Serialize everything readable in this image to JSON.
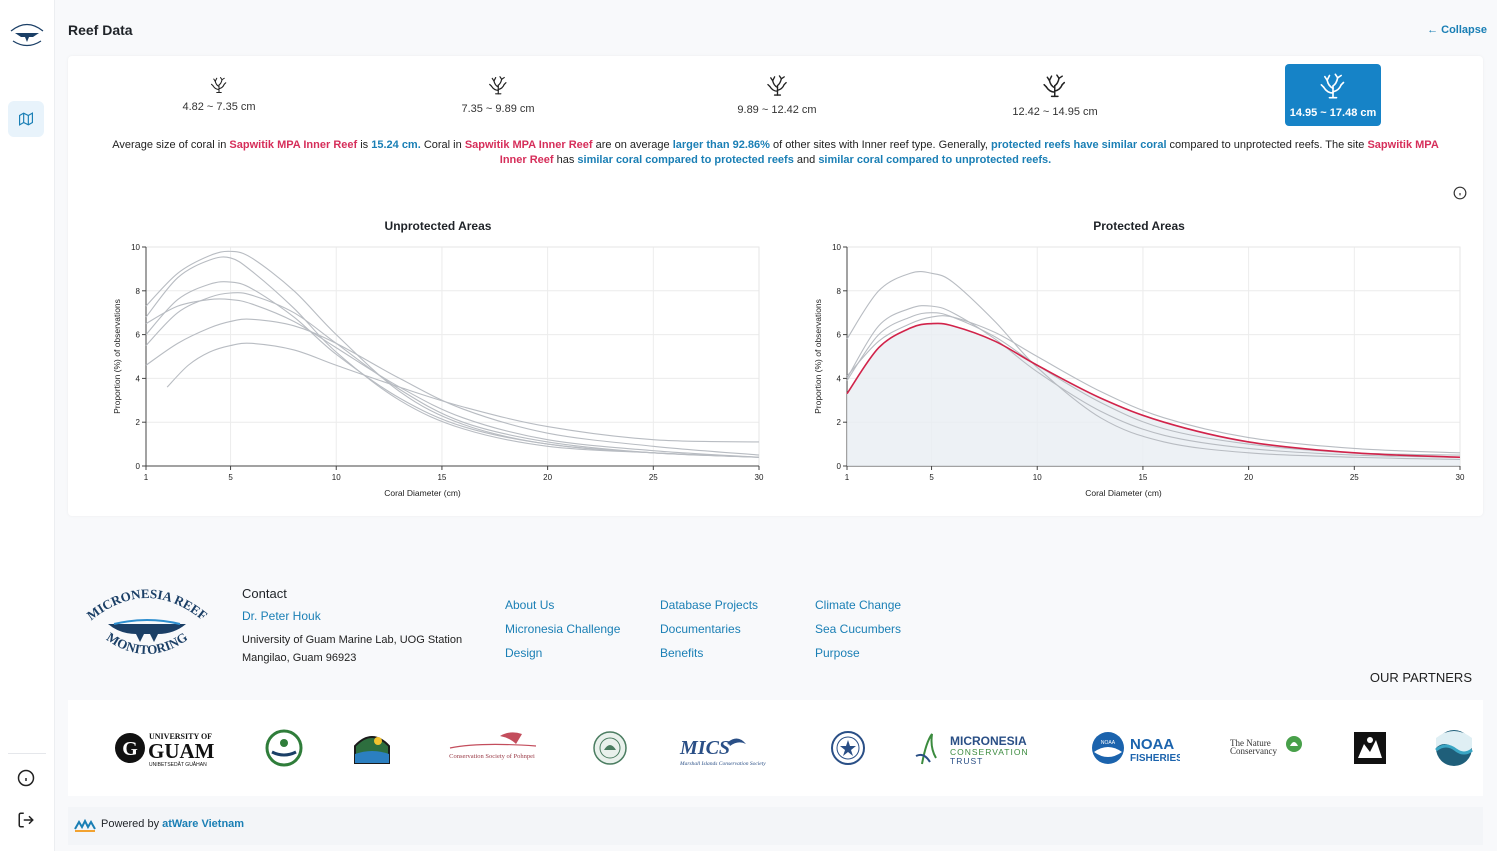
{
  "header": {
    "title": "Reef Data",
    "collapse_label": "Collapse"
  },
  "size_filters": [
    {
      "label": "4.82 ~ 7.35 cm",
      "active": false
    },
    {
      "label": "7.35 ~ 9.89 cm",
      "active": false
    },
    {
      "label": "9.89 ~ 12.42 cm",
      "active": false
    },
    {
      "label": "12.42 ~ 14.95 cm",
      "active": false
    },
    {
      "label": "14.95 ~ 17.48 cm",
      "active": true
    }
  ],
  "summary": {
    "p1": "Average size of coral in ",
    "site1": "Sapwitik MPA Inner Reef",
    "p2": " is ",
    "avg": "15.24 cm.",
    "p3": " Coral in ",
    "site2": "Sapwitik MPA Inner Reef",
    "p4": " are on average ",
    "pct": "larger than 92.86%",
    "p5": " of other sites with Inner reef type. Generally, ",
    "general": "protected reefs have similar coral",
    "p6": " compared to unprotected reefs. The site ",
    "site3": "Sapwitik MPA Inner Reef",
    "p7": " has ",
    "cmp1": "similar coral compared to protected reefs",
    "p8": " and ",
    "cmp2": "similar coral compared to unprotected reefs."
  },
  "chart_data": [
    {
      "type": "line",
      "title": "Unprotected Areas",
      "xlabel": "Coral Diameter (cm)",
      "ylabel": "Proportion (%) of observations",
      "xlim": [
        1,
        30
      ],
      "ylim": [
        0,
        10
      ],
      "xticks": [
        1,
        5,
        10,
        15,
        20,
        25,
        30
      ],
      "yticks": [
        0,
        2,
        4,
        6,
        8,
        10
      ],
      "grid": true,
      "series": [
        {
          "color": "#b8bcc2",
          "x": [
            1,
            2.5,
            4,
            5,
            6,
            8,
            10,
            13,
            16,
            20,
            25,
            30
          ],
          "y": [
            7.3,
            8.8,
            9.6,
            9.8,
            9.5,
            8.0,
            6.0,
            3.4,
            1.9,
            1.0,
            0.6,
            0.4
          ]
        },
        {
          "color": "#b8bcc2",
          "x": [
            1,
            2.5,
            4,
            5,
            6,
            8,
            10,
            13,
            16,
            20,
            25,
            30
          ],
          "y": [
            6.8,
            8.6,
            9.4,
            9.5,
            8.9,
            7.2,
            5.2,
            3.0,
            1.7,
            0.9,
            0.6,
            0.4
          ]
        },
        {
          "color": "#b8bcc2",
          "x": [
            1,
            2.5,
            4,
            5,
            6,
            8,
            10,
            13,
            16,
            20,
            25,
            30
          ],
          "y": [
            6.0,
            7.6,
            8.3,
            8.4,
            8.1,
            6.8,
            5.1,
            3.1,
            1.8,
            1.0,
            0.6,
            0.4
          ]
        },
        {
          "color": "#b8bcc2",
          "x": [
            1,
            2.5,
            4,
            5,
            6,
            8,
            10,
            13,
            16,
            20,
            25,
            30
          ],
          "y": [
            6.5,
            7.3,
            7.6,
            7.6,
            7.4,
            6.6,
            5.4,
            3.6,
            2.2,
            1.2,
            0.7,
            0.4
          ]
        },
        {
          "color": "#b8bcc2",
          "x": [
            1,
            2.5,
            4,
            5,
            6,
            8,
            10,
            13,
            16,
            20,
            25,
            30
          ],
          "y": [
            5.5,
            7.0,
            7.7,
            7.9,
            7.8,
            7.0,
            5.6,
            3.5,
            2.0,
            1.1,
            0.6,
            0.4
          ]
        },
        {
          "color": "#b8bcc2",
          "x": [
            1,
            2.5,
            4,
            5,
            6,
            8,
            10,
            13,
            16,
            20,
            25,
            30
          ],
          "y": [
            4.6,
            5.6,
            6.3,
            6.6,
            6.7,
            6.4,
            5.6,
            4.0,
            2.6,
            1.5,
            0.9,
            0.5
          ]
        },
        {
          "color": "#b8bcc2",
          "x": [
            2,
            3,
            4,
            5,
            6,
            8,
            10,
            13,
            16,
            20,
            25,
            30
          ],
          "y": [
            3.6,
            4.6,
            5.2,
            5.5,
            5.6,
            5.3,
            4.6,
            3.6,
            2.7,
            1.8,
            1.2,
            1.1
          ]
        }
      ]
    },
    {
      "type": "line",
      "title": "Protected Areas",
      "xlabel": "Coral Diameter (cm)",
      "ylabel": "Proportion (%) of observations",
      "xlim": [
        1,
        30
      ],
      "ylim": [
        0,
        10
      ],
      "xticks": [
        1,
        5,
        10,
        15,
        20,
        25,
        30
      ],
      "yticks": [
        0,
        2,
        4,
        6,
        8,
        10
      ],
      "grid": true,
      "series": [
        {
          "color": "#b8bcc2",
          "x": [
            1,
            2.5,
            4,
            5,
            6,
            8,
            10,
            13,
            16,
            20,
            25,
            30
          ],
          "y": [
            5.8,
            8.0,
            8.8,
            8.8,
            8.4,
            6.6,
            4.5,
            2.2,
            1.1,
            0.6,
            0.4,
            0.3
          ]
        },
        {
          "color": "#b8bcc2",
          "x": [
            1,
            2.5,
            4,
            5,
            6,
            8,
            10,
            13,
            16,
            20,
            25,
            30
          ],
          "y": [
            4.0,
            6.4,
            7.2,
            7.3,
            7.0,
            5.8,
            4.3,
            2.5,
            1.4,
            0.8,
            0.5,
            0.4
          ]
        },
        {
          "color": "#b8bcc2",
          "x": [
            1,
            2.5,
            4,
            5,
            6,
            8,
            10,
            13,
            16,
            20,
            25,
            30
          ],
          "y": [
            3.9,
            6.0,
            6.8,
            7.0,
            6.8,
            5.9,
            4.6,
            2.9,
            1.7,
            1.0,
            0.6,
            0.5
          ]
        },
        {
          "color": "#b8bcc2",
          "x": [
            1,
            2.5,
            4,
            5,
            6,
            8,
            10,
            13,
            16,
            20,
            25,
            30
          ],
          "y": [
            4.1,
            5.7,
            6.5,
            6.8,
            6.8,
            6.1,
            5.0,
            3.4,
            2.2,
            1.3,
            0.8,
            0.6
          ]
        },
        {
          "color": "#d1234a",
          "highlight": true,
          "x": [
            1,
            2.5,
            4,
            5,
            6,
            8,
            10,
            13,
            16,
            20,
            25,
            30
          ],
          "y": [
            3.3,
            5.4,
            6.3,
            6.5,
            6.4,
            5.7,
            4.6,
            3.1,
            2.0,
            1.1,
            0.6,
            0.4
          ]
        }
      ]
    }
  ],
  "footer": {
    "contact_heading": "Contact",
    "contact_name": "Dr. Peter Houk",
    "address_line1": "University of Guam Marine Lab, UOG Station",
    "address_line2": "Mangilao, Guam 96923",
    "col1": [
      "About Us",
      "Micronesia Challenge",
      "Design"
    ],
    "col2": [
      "Database Projects",
      "Documentaries",
      "Benefits"
    ],
    "col3": [
      "Climate Change",
      "Sea Cucumbers",
      "Purpose"
    ],
    "partners_heading": "OUR PARTNERS",
    "logo_text_top": "MICRONESIA REEF",
    "logo_text_bottom": "MONITORING",
    "partners": {
      "uog_top": "UNIVERSITY OF",
      "uog_main": "GUAM",
      "uog_sub": "UNIBETSEDÅT GUÅHAN",
      "csp": "Conservation Society of Pohnpei",
      "mics": "MICS",
      "mics_sub": "Marshall Islands Conservation Society",
      "mct_1": "MICRONESIA",
      "mct_2": "CONSERVATION",
      "mct_3": "TRUST",
      "noaa_badge": "NOAA",
      "noaa_1": "NOAA",
      "noaa_2": "FISHERIES",
      "tnc_1": "The Nature",
      "tnc_2": "Conservancy"
    },
    "powered_prefix": "Powered by ",
    "powered_brand": "atWare Vietnam"
  }
}
